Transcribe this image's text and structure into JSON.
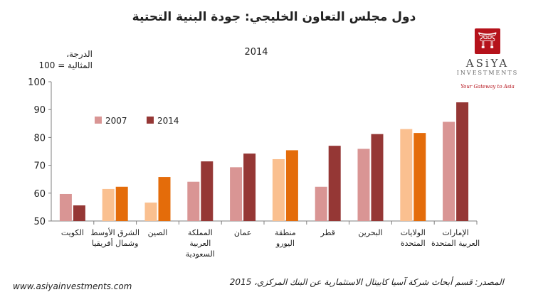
{
  "title": "دول مجلس التعاون الخليجي: جودة البنية التحتية",
  "subtitle": "2014",
  "ylabel": "الدرجة،\nالمثالية = 100",
  "logo": {
    "name": "ASiYA",
    "sub": "INVESTMENTS",
    "tagline": "Your Gateway to Asia"
  },
  "website": "www.asiyainvestments.com",
  "source": "المصدر: قسم أبحاث شركة آسيا كابيتال الاستثمارية عن البنك المركزي، 2015",
  "colors": {
    "series2007": "#d99594",
    "series2014": "#953735",
    "highlight2007": "#fac090",
    "highlight2014": "#e46c0a",
    "axis": "#7f7f7f",
    "grid": "#d9d9d9"
  },
  "chart_data": {
    "type": "bar",
    "categories": [
      "الكويت",
      "الشرق الأوسط\nوشمال أفريقيا",
      "الصين",
      "المملكة\nالعربية\nالسعودية",
      "عمان",
      "منطقة\nاليورو",
      "قطر",
      "البحرين",
      "الولايات\nالمتحدة",
      "الإمارات\nالعربية المتحدة"
    ],
    "highlighted": [
      false,
      true,
      true,
      false,
      false,
      true,
      false,
      false,
      true,
      false
    ],
    "series": [
      {
        "name": "2007",
        "values": [
          59.7,
          61.5,
          56.6,
          64.1,
          69.3,
          72.2,
          62.3,
          75.9,
          83.0,
          85.6
        ]
      },
      {
        "name": "2014",
        "values": [
          55.6,
          62.3,
          65.8,
          71.4,
          74.2,
          75.4,
          77.0,
          81.2,
          81.6,
          92.6
        ]
      }
    ],
    "ylim": [
      50,
      100
    ],
    "yticks": [
      "50",
      "60",
      "70",
      "80",
      "90",
      "100"
    ],
    "legend": "top-left",
    "grid": false
  }
}
